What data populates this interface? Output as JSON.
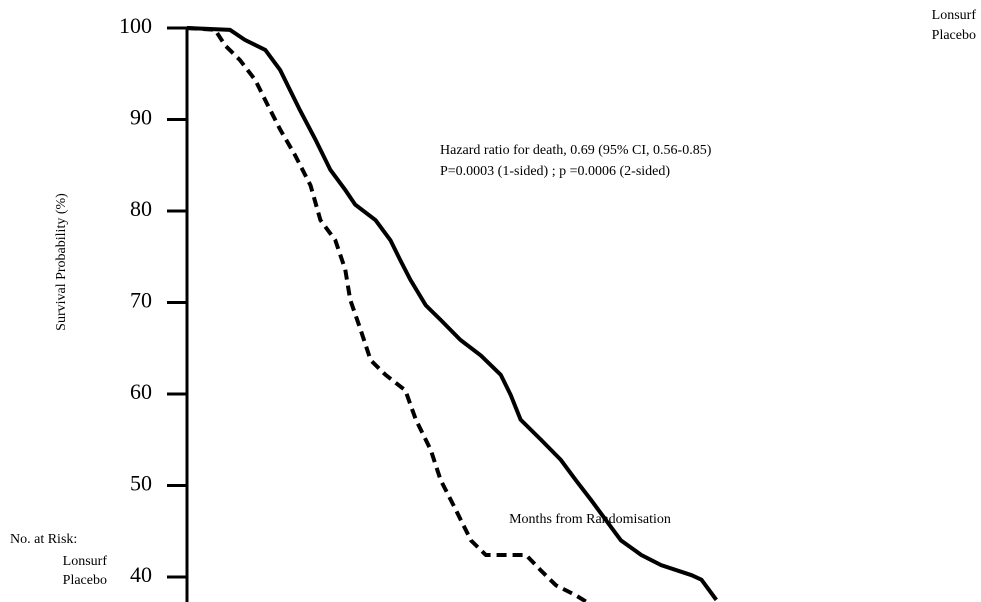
{
  "chart_data": {
    "type": "line",
    "y_label": "Survival Probability (%)",
    "x_label": "Months from Randomisation",
    "annotation": [
      "Hazard ratio for death, 0.69 (95% CI, 0.56-0.85)",
      "P=0.0003 (1-sided) ; p =0.0006 (2-sided)"
    ],
    "risk_table_title": "No. at Risk:",
    "xlim": [
      0,
      14.4
    ],
    "ylim": [
      37.3,
      100
    ],
    "yticks": [
      100,
      90,
      80,
      70,
      60,
      50,
      40
    ],
    "legend": "top-right",
    "series": [
      {
        "name": "Lonsurf",
        "color": "#000000",
        "line_style": "solid",
        "x": [
          0,
          0.78,
          1.05,
          1.42,
          1.69,
          1.87,
          2.05,
          2.33,
          2.6,
          2.87,
          3.05,
          3.42,
          3.69,
          3.87,
          4.05,
          4.33,
          4.6,
          4.96,
          5.33,
          5.69,
          5.87,
          6.05,
          6.42,
          6.78,
          7.05,
          7.33,
          7.6,
          7.87,
          8.24,
          8.6,
          9.15,
          9.33,
          9.6
        ],
        "values": [
          100,
          99.8,
          98.7,
          97.6,
          95.4,
          93.2,
          91.0,
          87.8,
          84.5,
          82.3,
          80.7,
          79.0,
          76.8,
          74.6,
          72.5,
          69.7,
          68.1,
          65.9,
          64.2,
          62.1,
          59.9,
          57.2,
          55.0,
          52.8,
          50.6,
          48.4,
          46.2,
          44.0,
          42.4,
          41.3,
          40.2,
          39.7,
          37.5
        ]
      },
      {
        "name": "Placebo",
        "color": "#000000",
        "line_style": "dashed",
        "x": [
          0,
          0.51,
          0.69,
          0.96,
          1.24,
          1.42,
          1.69,
          1.96,
          2.24,
          2.42,
          2.69,
          2.87,
          2.96,
          3.15,
          3.33,
          3.6,
          3.96,
          4.15,
          4.42,
          4.6,
          4.87,
          5.15,
          5.42,
          6.15,
          6.42,
          6.69,
          7.05,
          7.24
        ],
        "values": [
          100,
          99.8,
          98.1,
          96.5,
          94.3,
          92.1,
          88.9,
          86.1,
          82.8,
          79.0,
          76.8,
          73.6,
          70.3,
          67.0,
          63.7,
          62.1,
          60.4,
          57.2,
          53.9,
          50.6,
          47.4,
          44.0,
          42.4,
          42.4,
          40.7,
          39.1,
          38.0,
          37.3
        ]
      }
    ]
  }
}
